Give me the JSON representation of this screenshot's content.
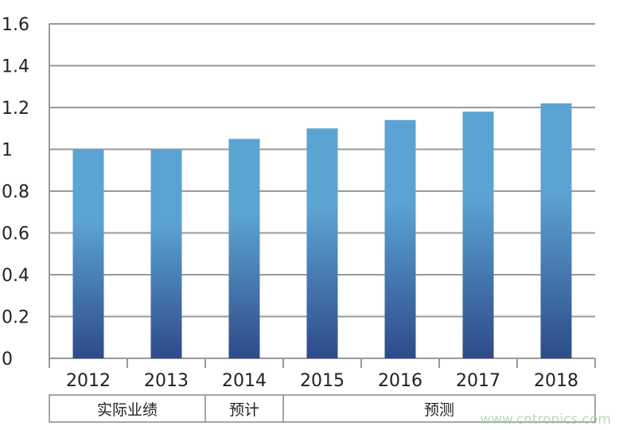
{
  "chart_data": {
    "type": "bar",
    "title": "",
    "xlabel": "",
    "ylabel": "",
    "categories": [
      "2012",
      "2013",
      "2014",
      "2015",
      "2016",
      "2017",
      "2018"
    ],
    "values": [
      1.0,
      1.0,
      1.05,
      1.1,
      1.14,
      1.18,
      1.22
    ],
    "ylim": [
      0,
      1.6
    ],
    "yticks": [
      "0",
      "0.2",
      "0.4",
      "0.6",
      "0.8",
      "1",
      "1.2",
      "1.4",
      "1.6"
    ],
    "grid": true,
    "groups": [
      {
        "label": "实际业绩",
        "categories": [
          "2012",
          "2013"
        ]
      },
      {
        "label": "预计",
        "categories": [
          "2014"
        ]
      },
      {
        "label": "预测",
        "categories": [
          "2015",
          "2016",
          "2017",
          "2018"
        ]
      }
    ],
    "colors": {
      "bar_top": "#5ba3d3",
      "bar_bottom": "#2e4a8a",
      "grid": "#999999"
    }
  },
  "watermark": "www.cntronics.com"
}
